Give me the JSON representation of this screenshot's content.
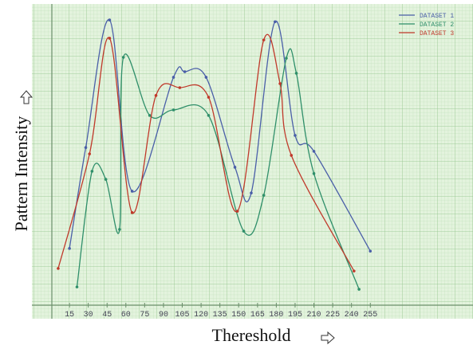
{
  "chart_data": {
    "type": "line",
    "xlabel": "Thereshold",
    "ylabel": "Pattern Intensity",
    "xlim": [
      0,
      335
    ],
    "ylim": [
      0,
      100
    ],
    "xticks": [
      15,
      30,
      45,
      60,
      75,
      90,
      105,
      120,
      135,
      150,
      165,
      180,
      195,
      210,
      225,
      240,
      255
    ],
    "legend": "top-right",
    "series": [
      {
        "name": "DATASET 1",
        "color": "#4a5fa8",
        "x": [
          15,
          28,
          47,
          65,
          98,
          107,
          124,
          147,
          160,
          179,
          195,
          210,
          255
        ],
        "values": [
          19.6,
          54.5,
          98.6,
          39.4,
          78.8,
          80.7,
          78.8,
          47.7,
          38.8,
          98,
          58.7,
          53.2,
          18.7
        ]
      },
      {
        "name": "DATASET 2",
        "color": "#2f8f6a",
        "x": [
          21,
          33,
          44,
          55,
          58,
          79,
          98,
          126,
          154,
          170,
          188,
          196,
          210,
          246
        ],
        "values": [
          6.3,
          46.3,
          43.5,
          26.2,
          85.7,
          65.6,
          67.5,
          65.6,
          25.6,
          38,
          85.4,
          80.2,
          45.5,
          5.5
        ]
      },
      {
        "name": "DATASET 3",
        "color": "#c0392b",
        "x": [
          6,
          31,
          47,
          65,
          84,
          103,
          126,
          149,
          170,
          183,
          192,
          242
        ],
        "values": [
          12.7,
          52.3,
          92.3,
          32,
          72.5,
          75.2,
          71.9,
          32.5,
          91.7,
          76.6,
          51.8,
          11.8
        ]
      }
    ]
  }
}
